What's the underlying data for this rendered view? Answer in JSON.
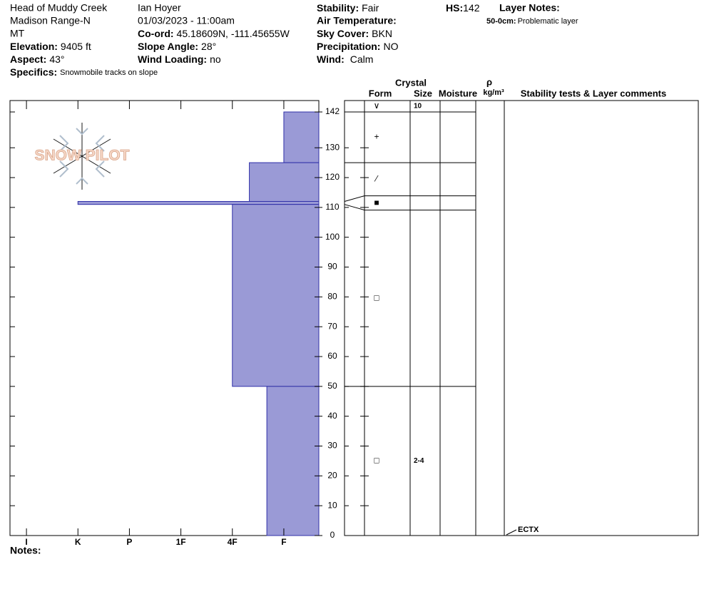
{
  "header": {
    "location": "Head of Muddy Creek",
    "range": "Madison Range-N",
    "state": "MT",
    "elevation": {
      "label": "Elevation:",
      "value": "9405 ft"
    },
    "aspect": {
      "label": "Aspect:",
      "value": "43°"
    },
    "specifics": {
      "label": "Specifics:",
      "value": "Snowmobile tracks on slope"
    },
    "observer": "Ian Hoyer",
    "datetime": "01/03/2023 - 11:00am",
    "coord": {
      "label": "Co-ord:",
      "value": "45.18609N, -111.45655W"
    },
    "slope_angle": {
      "label": "Slope Angle:",
      "value": "28°"
    },
    "wind_loading": {
      "label": "Wind Loading:",
      "value": "no"
    },
    "stability": {
      "label": "Stability:",
      "value": "Fair"
    },
    "air_temperature": {
      "label": "Air Temperature:"
    },
    "sky_cover": {
      "label": "Sky Cover:",
      "value": "BKN"
    },
    "precipitation": {
      "label": "Precipitation:",
      "value": "NO"
    },
    "wind": {
      "label": "Wind:",
      "value": "Calm"
    },
    "hs": {
      "label": "HS:",
      "value": "142"
    },
    "layer_notes": {
      "label": "Layer Notes:",
      "items": [
        {
          "range": "50-0cm:",
          "text": "Problematic layer"
        }
      ]
    }
  },
  "logo": "SNOW PILOT",
  "chart_data": {
    "type": "hardness-profile",
    "ylim": [
      0,
      142
    ],
    "yticks": [
      0,
      10,
      20,
      30,
      40,
      50,
      60,
      70,
      80,
      90,
      100,
      110,
      120,
      130,
      142
    ],
    "xlim": [
      0.68,
      6.68
    ],
    "xticks": [
      {
        "value": 1,
        "label": "I"
      },
      {
        "value": 2,
        "label": "K"
      },
      {
        "value": 3,
        "label": "P"
      },
      {
        "value": 4,
        "label": "1F"
      },
      {
        "value": 5,
        "label": "4F"
      },
      {
        "value": 6,
        "label": "F"
      }
    ],
    "color": "#9a9ad6",
    "edge_color": "#3030a8",
    "layers": [
      {
        "top": 142,
        "bottom": 125,
        "hardness": 6,
        "form": "+"
      },
      {
        "top": 125,
        "bottom": 112,
        "hardness": 5.33,
        "form": "⁄"
      },
      {
        "top": 112,
        "bottom": 111,
        "hardness": 2,
        "form": "■"
      },
      {
        "top": 111,
        "bottom": 50,
        "hardness": 5,
        "form": "□"
      },
      {
        "top": 50,
        "bottom": 0,
        "hardness": 5.67,
        "form": "□",
        "size": "2-4"
      }
    ],
    "surface": {
      "form": "∨",
      "size": "10"
    },
    "stability_tests": [
      {
        "depth": 0,
        "result": "ECTX"
      }
    ]
  },
  "layer_table": {
    "crystal": "Crystal",
    "form": "Form",
    "size": "Size",
    "moisture": "Moisture",
    "rho": "ρ",
    "density_unit": "kg/m³",
    "comments": "Stability tests & Layer comments"
  },
  "notes_label": "Notes:"
}
